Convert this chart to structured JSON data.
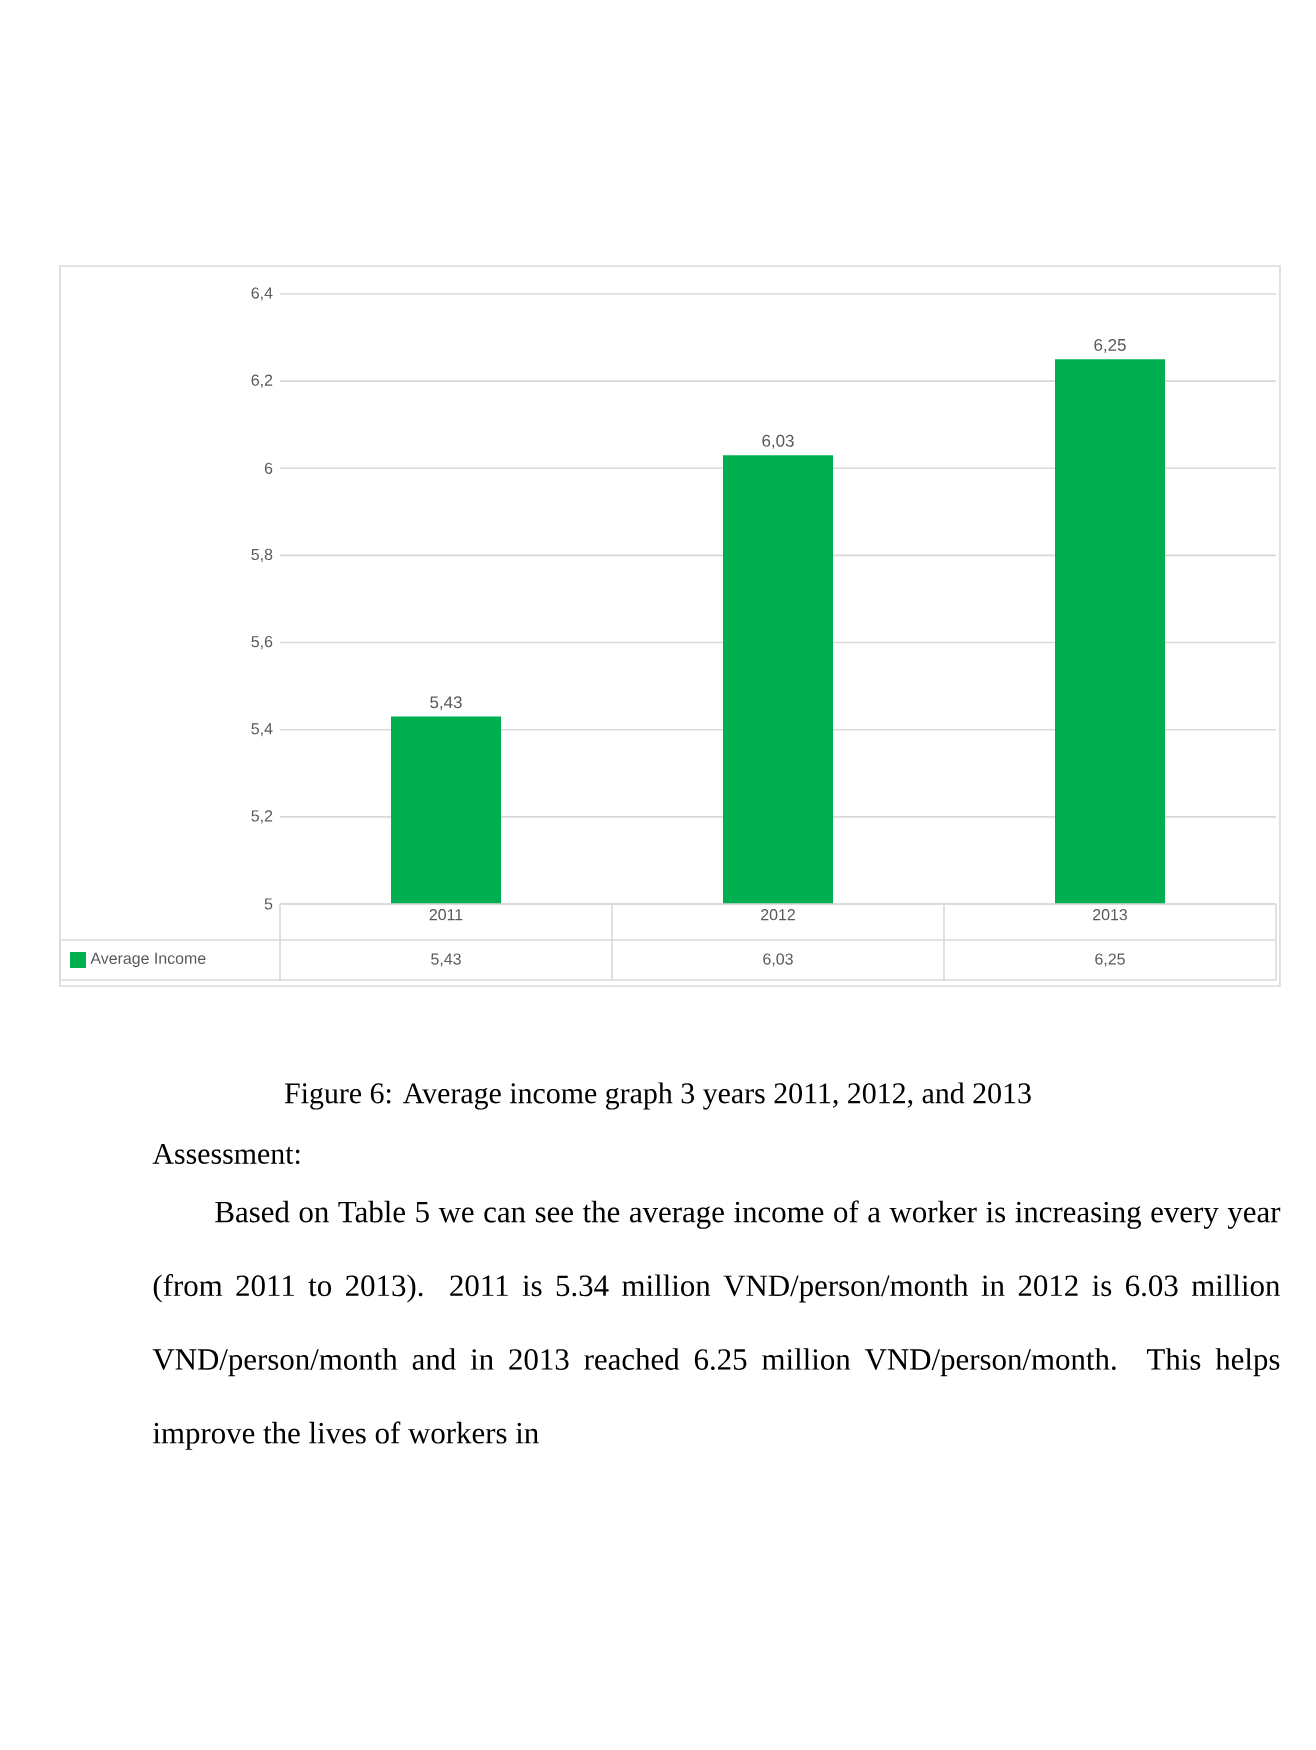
{
  "chart_data": {
    "type": "bar",
    "categories": [
      "2011",
      "2012",
      "2013"
    ],
    "series": [
      {
        "name": "Average Income",
        "color": "#00b050",
        "values": [
          5.43,
          6.03,
          6.25
        ],
        "value_labels": [
          "5,43",
          "6,03",
          "6,25"
        ]
      }
    ],
    "ylim": [
      5,
      6.4
    ],
    "yticks": [
      5,
      {
        "value": 5.2,
        "label": "5,2"
      },
      {
        "value": 5.4,
        "label": "5,4"
      },
      {
        "value": 5.6,
        "label": "5,6"
      },
      {
        "value": 5.8,
        "label": "5,8"
      },
      6,
      {
        "value": 6.2,
        "label": "6,2"
      },
      {
        "value": 6.4,
        "label": "6,4"
      }
    ],
    "grid": "y",
    "legend": "bottom",
    "annotations": [
      "Figure 6: Average income graph 3 years 2011, 2012, and 2013",
      "Assessment:",
      "Based on Table 5 we can see the average income of a worker is increasing every year (from 2011 to 2013). 2011 is 5.34 million VND/person/month in 2012 is 6.03 million VND/person/month and in 2013 reached 6.25 million VND/person/month. This helps improve the lives of workers in"
    ]
  }
}
